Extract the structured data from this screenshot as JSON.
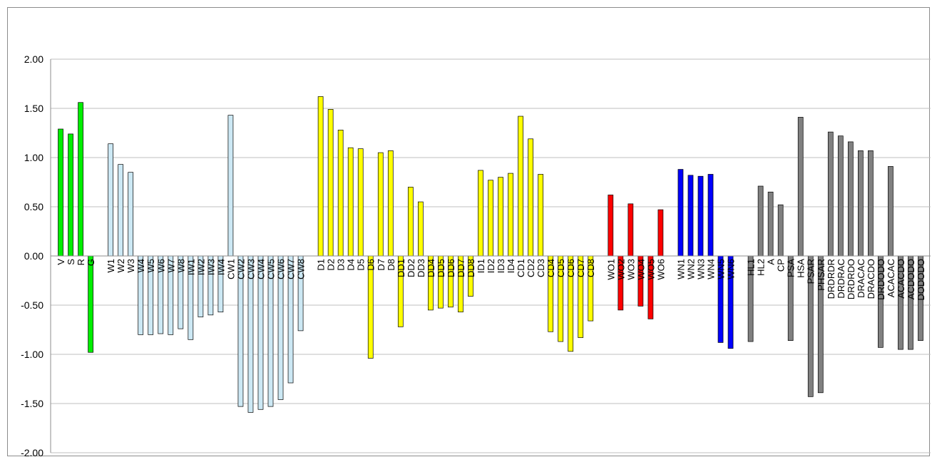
{
  "chart_data": {
    "type": "bar",
    "title": "",
    "xlabel": "",
    "ylabel": "",
    "ylim": [
      -2,
      2
    ],
    "yticks": [
      "2.00",
      "1.50",
      "1.00",
      "0.50",
      "0.00",
      "-0.50",
      "-1.00",
      "-1.50",
      "-2.00"
    ],
    "grid": true,
    "legend": "none",
    "groups": [
      {
        "color": "#00ee00",
        "categories": [
          "V",
          "S",
          "R",
          "G"
        ],
        "values": [
          1.29,
          1.24,
          1.56,
          -0.98
        ]
      },
      {
        "color": "#cce8f4",
        "categories": [
          "W1",
          "W2",
          "W3",
          "W4",
          "W5",
          "W6",
          "W7",
          "W8",
          "IW1",
          "IW2",
          "IW3",
          "IW4",
          "CW1",
          "CW2",
          "CW3",
          "CW4",
          "CW5",
          "CW6",
          "CW7",
          "CW8"
        ],
        "values": [
          1.14,
          0.93,
          0.85,
          -0.8,
          -0.8,
          -0.79,
          -0.8,
          -0.74,
          -0.85,
          -0.62,
          -0.6,
          -0.57,
          1.43,
          -1.53,
          -1.59,
          -1.56,
          -1.53,
          -1.46,
          -1.29,
          -0.76
        ]
      },
      {
        "color": "#ffff00",
        "categories": [
          "D1",
          "D2",
          "D3",
          "D4",
          "D5",
          "D6",
          "D7",
          "D8",
          "DD1",
          "DD2",
          "DD3",
          "DD4",
          "DD5",
          "DD6",
          "DD7",
          "DD8",
          "ID1",
          "ID2",
          "ID3",
          "ID4",
          "CD1",
          "CD2",
          "CD3",
          "CD4",
          "CD5",
          "CD6",
          "CD7",
          "CD8"
        ],
        "values": [
          1.62,
          1.49,
          1.28,
          1.1,
          1.09,
          -1.04,
          1.05,
          1.07,
          -0.72,
          0.7,
          0.55,
          -0.55,
          -0.53,
          -0.52,
          -0.57,
          -0.41,
          0.87,
          0.77,
          0.8,
          0.84,
          1.42,
          1.19,
          0.83,
          -0.77,
          -0.87,
          -0.97,
          -0.83,
          -0.66
        ]
      },
      {
        "color": "#ff0000",
        "categories": [
          "WO1",
          "WO2",
          "WO3",
          "WO4",
          "WO5",
          "WO6"
        ],
        "values": [
          0.62,
          -0.55,
          0.53,
          -0.51,
          -0.64,
          0.47
        ]
      },
      {
        "color": "#0000ff",
        "categories": [
          "WN1",
          "WN2",
          "WN3",
          "WN4",
          "WN5",
          "WN6"
        ],
        "values": [
          0.88,
          0.82,
          0.81,
          0.83,
          -0.88,
          -0.94
        ]
      },
      {
        "color": "#808080",
        "categories": [
          "HL1",
          "HL2",
          "A",
          "CP",
          "PSA",
          "HSA",
          "PSAR",
          "PHSAR",
          "DRDRDR",
          "DRDRAC",
          "DRDRDO",
          "DRACAC",
          "DRACDO",
          "DRDODO",
          "ACACAC",
          "ACACDO",
          "ACDODO",
          "DODODO"
        ],
        "values": [
          -0.87,
          0.71,
          0.65,
          0.52,
          -0.86,
          1.41,
          -1.43,
          -1.39,
          1.26,
          1.22,
          1.16,
          1.07,
          1.07,
          -0.93,
          0.91,
          -0.95,
          -0.95,
          -0.86
        ]
      }
    ]
  }
}
